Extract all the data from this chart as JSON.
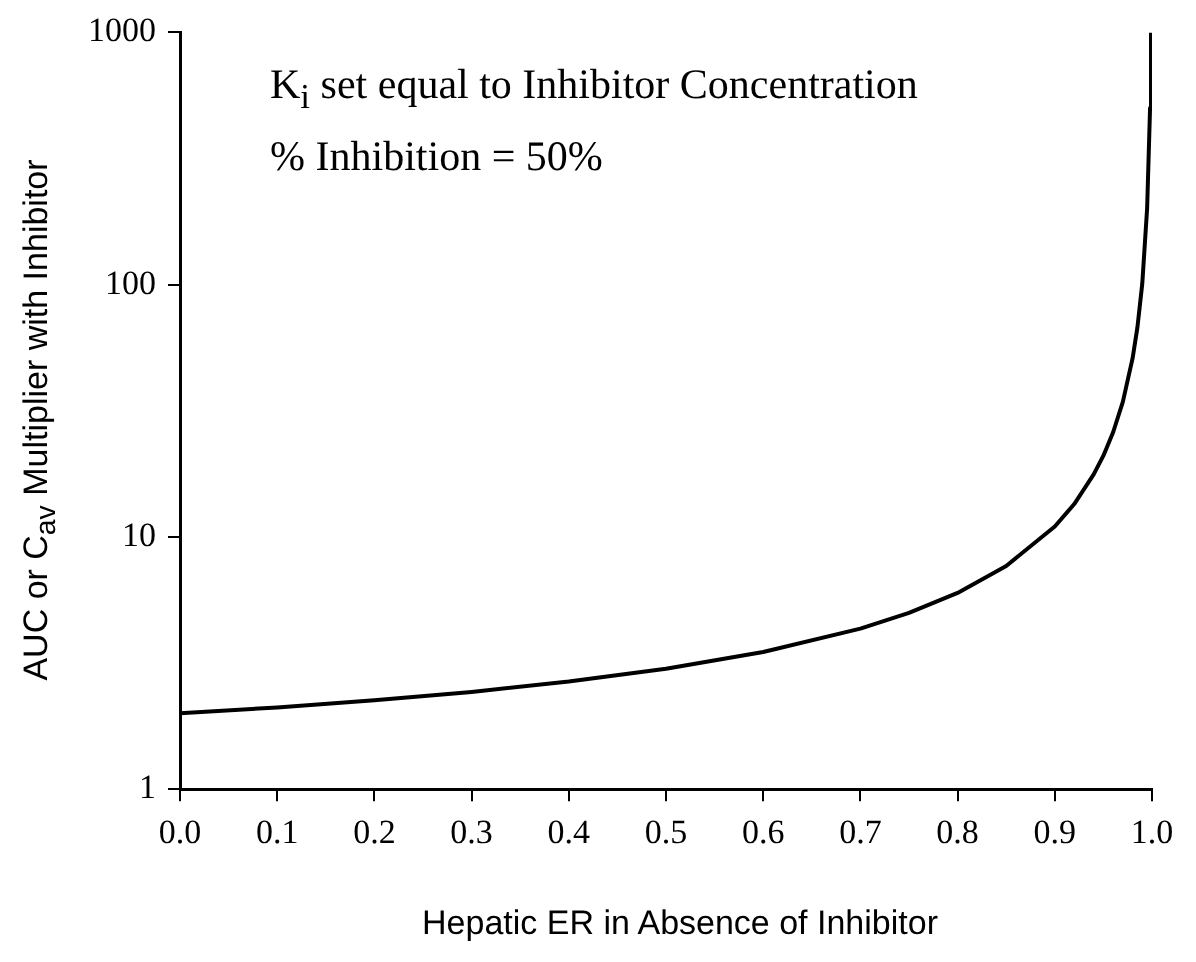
{
  "chart_data": {
    "type": "line",
    "xlabel": "Hepatic ER in Absence of Inhibitor",
    "ylabel": "AUC or C$_{av}$ Multiplier with Inhibitor",
    "annotations": [
      "K$_{i}$ set equal to Inhibitor Concentration",
      "% Inhibition = 50%"
    ],
    "x": [
      0,
      0.1,
      0.2,
      0.3,
      0.4,
      0.5,
      0.6,
      0.7,
      0.75,
      0.8,
      0.85,
      0.9,
      0.92,
      0.94,
      0.95,
      0.96,
      0.97,
      0.98,
      0.985,
      0.99,
      0.995,
      0.998,
      0.999
    ],
    "series": [
      {
        "color": "#000000",
        "values": [
          2,
          2.11,
          2.25,
          2.43,
          2.67,
          3,
          3.5,
          4.33,
          5,
          6,
          7.67,
          11,
          13.5,
          17.7,
          21,
          26,
          34.3,
          51,
          67.7,
          101,
          201,
          501,
          1000
        ]
      }
    ],
    "log": "y",
    "xlim": [
      0,
      1
    ],
    "ylim": [
      1,
      1000
    ],
    "xticks": [
      {
        "value": 0,
        "label": "0.0"
      },
      {
        "value": 0.1,
        "label": "0.1"
      },
      {
        "value": 0.2,
        "label": "0.2"
      },
      {
        "value": 0.3,
        "label": "0.3"
      },
      {
        "value": 0.4,
        "label": "0.4"
      },
      {
        "value": 0.5,
        "label": "0.5"
      },
      {
        "value": 0.6,
        "label": "0.6"
      },
      {
        "value": 0.7,
        "label": "0.7"
      },
      {
        "value": 0.8,
        "label": "0.8"
      },
      {
        "value": 0.9,
        "label": "0.9"
      },
      {
        "value": 1,
        "label": "1.0"
      }
    ],
    "yticks": [
      1,
      10,
      100,
      1000
    ],
    "grid": false,
    "legend": false,
    "marker": "none",
    "line_style": "solid"
  }
}
